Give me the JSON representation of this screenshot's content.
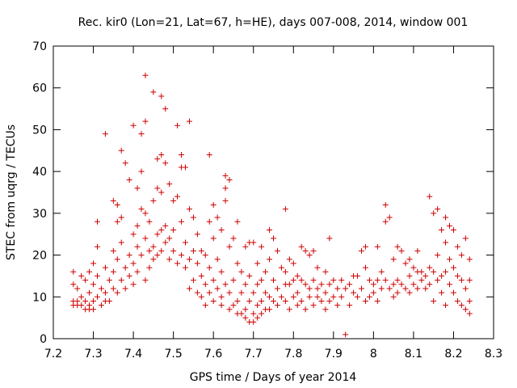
{
  "chart_data": {
    "type": "scatter",
    "title": "Rec. kir0 (Lon=21, Lat=67, h=HE), days 007-008, 2014, window 001",
    "xlabel": "GPS time / Days of year 2014",
    "ylabel": "STEC from uqrg / TECUs",
    "xlim": [
      7.2,
      8.3
    ],
    "ylim": [
      0,
      70
    ],
    "xticks": [
      "7.2",
      "7.3",
      "7.4",
      "7.5",
      "7.6",
      "7.7",
      "7.8",
      "7.9",
      "8",
      "8.1",
      "8.2",
      "8.3"
    ],
    "yticks": [
      "0",
      "10",
      "20",
      "30",
      "40",
      "50",
      "60",
      "70"
    ],
    "grid": false,
    "marker": "+",
    "color": "#cc0000",
    "series": [
      {
        "name": "STEC",
        "points": [
          [
            7.25,
            16
          ],
          [
            7.25,
            13
          ],
          [
            7.25,
            9
          ],
          [
            7.25,
            8
          ],
          [
            7.26,
            12
          ],
          [
            7.26,
            9
          ],
          [
            7.26,
            8
          ],
          [
            7.27,
            15
          ],
          [
            7.27,
            10
          ],
          [
            7.27,
            8
          ],
          [
            7.28,
            14
          ],
          [
            7.28,
            9
          ],
          [
            7.28,
            7
          ],
          [
            7.29,
            16
          ],
          [
            7.29,
            11
          ],
          [
            7.29,
            8
          ],
          [
            7.29,
            7
          ],
          [
            7.3,
            18
          ],
          [
            7.3,
            13
          ],
          [
            7.3,
            9
          ],
          [
            7.3,
            7
          ],
          [
            7.31,
            28
          ],
          [
            7.31,
            22
          ],
          [
            7.31,
            15
          ],
          [
            7.31,
            10
          ],
          [
            7.32,
            12
          ],
          [
            7.32,
            8
          ],
          [
            7.33,
            49
          ],
          [
            7.33,
            17
          ],
          [
            7.33,
            11
          ],
          [
            7.33,
            9
          ],
          [
            7.34,
            14
          ],
          [
            7.34,
            9
          ],
          [
            7.35,
            33
          ],
          [
            7.35,
            21
          ],
          [
            7.35,
            16
          ],
          [
            7.35,
            12
          ],
          [
            7.36,
            32
          ],
          [
            7.36,
            28
          ],
          [
            7.36,
            19
          ],
          [
            7.36,
            11
          ],
          [
            7.37,
            45
          ],
          [
            7.37,
            29
          ],
          [
            7.37,
            23
          ],
          [
            7.37,
            14
          ],
          [
            7.38,
            42
          ],
          [
            7.38,
            17
          ],
          [
            7.38,
            12
          ],
          [
            7.39,
            38
          ],
          [
            7.39,
            20
          ],
          [
            7.39,
            15
          ],
          [
            7.4,
            51
          ],
          [
            7.4,
            25
          ],
          [
            7.4,
            18
          ],
          [
            7.4,
            13
          ],
          [
            7.41,
            36
          ],
          [
            7.41,
            27
          ],
          [
            7.41,
            22
          ],
          [
            7.41,
            16
          ],
          [
            7.42,
            49
          ],
          [
            7.42,
            40
          ],
          [
            7.42,
            31
          ],
          [
            7.42,
            20
          ],
          [
            7.43,
            63
          ],
          [
            7.43,
            52
          ],
          [
            7.43,
            30
          ],
          [
            7.43,
            24
          ],
          [
            7.43,
            14
          ],
          [
            7.44,
            28
          ],
          [
            7.44,
            21
          ],
          [
            7.44,
            17
          ],
          [
            7.45,
            59
          ],
          [
            7.45,
            33
          ],
          [
            7.45,
            22
          ],
          [
            7.45,
            19
          ],
          [
            7.46,
            43
          ],
          [
            7.46,
            36
          ],
          [
            7.46,
            25
          ],
          [
            7.46,
            20
          ],
          [
            7.47,
            58
          ],
          [
            7.47,
            44
          ],
          [
            7.47,
            35
          ],
          [
            7.47,
            26
          ],
          [
            7.47,
            21
          ],
          [
            7.48,
            55
          ],
          [
            7.48,
            42
          ],
          [
            7.48,
            27
          ],
          [
            7.48,
            23
          ],
          [
            7.49,
            37
          ],
          [
            7.49,
            24
          ],
          [
            7.49,
            19
          ],
          [
            7.5,
            33
          ],
          [
            7.5,
            26
          ],
          [
            7.5,
            21
          ],
          [
            7.51,
            51
          ],
          [
            7.51,
            34
          ],
          [
            7.51,
            18
          ],
          [
            7.52,
            44
          ],
          [
            7.52,
            41
          ],
          [
            7.52,
            28
          ],
          [
            7.52,
            20
          ],
          [
            7.53,
            41
          ],
          [
            7.53,
            23
          ],
          [
            7.53,
            17
          ],
          [
            7.54,
            52
          ],
          [
            7.54,
            31
          ],
          [
            7.54,
            19
          ],
          [
            7.54,
            12
          ],
          [
            7.55,
            29
          ],
          [
            7.55,
            21
          ],
          [
            7.55,
            14
          ],
          [
            7.56,
            25
          ],
          [
            7.56,
            18
          ],
          [
            7.56,
            11
          ],
          [
            7.57,
            21
          ],
          [
            7.57,
            15
          ],
          [
            7.57,
            10
          ],
          [
            7.58,
            20
          ],
          [
            7.58,
            13
          ],
          [
            7.58,
            8
          ],
          [
            7.59,
            44
          ],
          [
            7.59,
            28
          ],
          [
            7.59,
            17
          ],
          [
            7.59,
            11
          ],
          [
            7.6,
            32
          ],
          [
            7.6,
            24
          ],
          [
            7.6,
            14
          ],
          [
            7.6,
            9
          ],
          [
            7.61,
            29
          ],
          [
            7.61,
            19
          ],
          [
            7.61,
            12
          ],
          [
            7.62,
            26
          ],
          [
            7.62,
            16
          ],
          [
            7.62,
            10
          ],
          [
            7.62,
            8
          ],
          [
            7.63,
            39
          ],
          [
            7.63,
            36
          ],
          [
            7.63,
            33
          ],
          [
            7.63,
            13
          ],
          [
            7.64,
            38
          ],
          [
            7.64,
            22
          ],
          [
            7.64,
            11
          ],
          [
            7.64,
            7
          ],
          [
            7.65,
            24
          ],
          [
            7.65,
            14
          ],
          [
            7.65,
            8
          ],
          [
            7.66,
            28
          ],
          [
            7.66,
            18
          ],
          [
            7.66,
            9
          ],
          [
            7.66,
            6
          ],
          [
            7.67,
            16
          ],
          [
            7.67,
            11
          ],
          [
            7.67,
            6
          ],
          [
            7.68,
            22
          ],
          [
            7.68,
            13
          ],
          [
            7.68,
            7
          ],
          [
            7.68,
            5
          ],
          [
            7.69,
            23
          ],
          [
            7.69,
            15
          ],
          [
            7.69,
            9
          ],
          [
            7.69,
            4
          ],
          [
            7.7,
            23
          ],
          [
            7.7,
            11
          ],
          [
            7.7,
            6
          ],
          [
            7.7,
            4
          ],
          [
            7.71,
            18
          ],
          [
            7.71,
            13
          ],
          [
            7.71,
            8
          ],
          [
            7.71,
            5
          ],
          [
            7.72,
            22
          ],
          [
            7.72,
            14
          ],
          [
            7.72,
            9
          ],
          [
            7.72,
            6
          ],
          [
            7.73,
            16
          ],
          [
            7.73,
            11
          ],
          [
            7.73,
            7
          ],
          [
            7.74,
            26
          ],
          [
            7.74,
            19
          ],
          [
            7.74,
            10
          ],
          [
            7.74,
            7
          ],
          [
            7.75,
            24
          ],
          [
            7.75,
            14
          ],
          [
            7.75,
            9
          ],
          [
            7.76,
            21
          ],
          [
            7.76,
            12
          ],
          [
            7.76,
            8
          ],
          [
            7.77,
            17
          ],
          [
            7.77,
            10
          ],
          [
            7.78,
            31
          ],
          [
            7.78,
            16
          ],
          [
            7.78,
            13
          ],
          [
            7.78,
            9
          ],
          [
            7.79,
            19
          ],
          [
            7.79,
            13
          ],
          [
            7.79,
            7
          ],
          [
            7.8,
            18
          ],
          [
            7.8,
            14
          ],
          [
            7.8,
            10
          ],
          [
            7.81,
            15
          ],
          [
            7.81,
            11
          ],
          [
            7.81,
            8
          ],
          [
            7.82,
            22
          ],
          [
            7.82,
            14
          ],
          [
            7.82,
            9
          ],
          [
            7.83,
            21
          ],
          [
            7.83,
            13
          ],
          [
            7.83,
            7
          ],
          [
            7.84,
            20
          ],
          [
            7.84,
            12
          ],
          [
            7.84,
            10
          ],
          [
            7.85,
            21
          ],
          [
            7.85,
            14
          ],
          [
            7.85,
            8
          ],
          [
            7.86,
            17
          ],
          [
            7.86,
            12
          ],
          [
            7.86,
            10
          ],
          [
            7.87,
            13
          ],
          [
            7.87,
            9
          ],
          [
            7.88,
            16
          ],
          [
            7.88,
            11
          ],
          [
            7.88,
            7
          ],
          [
            7.89,
            24
          ],
          [
            7.89,
            13
          ],
          [
            7.89,
            9
          ],
          [
            7.9,
            14
          ],
          [
            7.9,
            10
          ],
          [
            7.91,
            12
          ],
          [
            7.91,
            8
          ],
          [
            7.92,
            14
          ],
          [
            7.92,
            10
          ],
          [
            7.93,
            1
          ],
          [
            7.93,
            12
          ],
          [
            7.94,
            13
          ],
          [
            7.94,
            8
          ],
          [
            7.95,
            15
          ],
          [
            7.95,
            11
          ],
          [
            7.96,
            15
          ],
          [
            7.96,
            10
          ],
          [
            7.97,
            21
          ],
          [
            7.97,
            12
          ],
          [
            7.98,
            22
          ],
          [
            7.98,
            17
          ],
          [
            7.98,
            9
          ],
          [
            7.99,
            14
          ],
          [
            7.99,
            10
          ],
          [
            8.0,
            13
          ],
          [
            8.0,
            11
          ],
          [
            8.01,
            22
          ],
          [
            8.01,
            14
          ],
          [
            8.01,
            9
          ],
          [
            8.02,
            16
          ],
          [
            8.02,
            12
          ],
          [
            8.03,
            32
          ],
          [
            8.03,
            28
          ],
          [
            8.03,
            14
          ],
          [
            8.04,
            29
          ],
          [
            8.04,
            12
          ],
          [
            8.05,
            19
          ],
          [
            8.05,
            13
          ],
          [
            8.05,
            10
          ],
          [
            8.06,
            22
          ],
          [
            8.06,
            14
          ],
          [
            8.06,
            11
          ],
          [
            8.07,
            21
          ],
          [
            8.07,
            13
          ],
          [
            8.08,
            18
          ],
          [
            8.08,
            12
          ],
          [
            8.09,
            19
          ],
          [
            8.09,
            15
          ],
          [
            8.09,
            11
          ],
          [
            8.1,
            17
          ],
          [
            8.1,
            13
          ],
          [
            8.11,
            21
          ],
          [
            8.11,
            16
          ],
          [
            8.11,
            12
          ],
          [
            8.12,
            16
          ],
          [
            8.12,
            14
          ],
          [
            8.13,
            15
          ],
          [
            8.13,
            12
          ],
          [
            8.14,
            34
          ],
          [
            8.14,
            17
          ],
          [
            8.14,
            13
          ],
          [
            8.15,
            30
          ],
          [
            8.15,
            16
          ],
          [
            8.15,
            9
          ],
          [
            8.16,
            31
          ],
          [
            8.16,
            20
          ],
          [
            8.16,
            14
          ],
          [
            8.17,
            26
          ],
          [
            8.17,
            15
          ],
          [
            8.17,
            11
          ],
          [
            8.18,
            29
          ],
          [
            8.18,
            23
          ],
          [
            8.18,
            16
          ],
          [
            8.18,
            8
          ],
          [
            8.19,
            27
          ],
          [
            8.19,
            19
          ],
          [
            8.19,
            13
          ],
          [
            8.2,
            26
          ],
          [
            8.2,
            17
          ],
          [
            8.2,
            11
          ],
          [
            8.21,
            22
          ],
          [
            8.21,
            15
          ],
          [
            8.21,
            9
          ],
          [
            8.22,
            20
          ],
          [
            8.22,
            14
          ],
          [
            8.22,
            8
          ],
          [
            8.23,
            24
          ],
          [
            8.23,
            12
          ],
          [
            8.23,
            7
          ],
          [
            8.24,
            19
          ],
          [
            8.24,
            14
          ],
          [
            8.24,
            9
          ],
          [
            8.24,
            6
          ]
        ]
      }
    ]
  }
}
